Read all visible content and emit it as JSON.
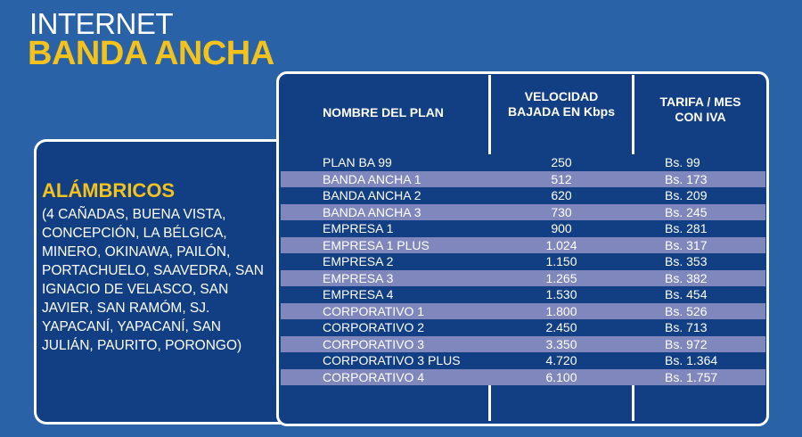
{
  "header": {
    "line1": "INTERNET",
    "line2": "BANDA ANCHA"
  },
  "left_panel": {
    "title": "ALÁMBRICOS",
    "description": "(4 CAÑADAS, BUENA VISTA, CONCEPCIÓN, LA BÉLGICA, MINERO, OKINAWA, PAILÓN, PORTACHUELO, SAAVEDRA, SAN IGNACIO DE VELASCO, SAN JAVIER, SAN RAMÓM, SJ. YAPACANÍ, YAPACANÍ, SAN JULIÁN, PAURITO, PORONGO)"
  },
  "table": {
    "headers": {
      "plan": "NOMBRE DEL PLAN",
      "speed": "VELOCIDAD BAJADA EN Kbps",
      "tariff": "TARIFA / MES CON IVA"
    },
    "rows": [
      {
        "plan": "PLAN BA 99",
        "speed": "250",
        "tariff": "Bs. 99"
      },
      {
        "plan": "BANDA ANCHA 1",
        "speed": "512",
        "tariff": "Bs. 173"
      },
      {
        "plan": "BANDA ANCHA 2",
        "speed": "620",
        "tariff": "Bs. 209"
      },
      {
        "plan": "BANDA ANCHA 3",
        "speed": "730",
        "tariff": "Bs. 245"
      },
      {
        "plan": "EMPRESA 1",
        "speed": "900",
        "tariff": "Bs. 281"
      },
      {
        "plan": "EMPRESA 1 PLUS",
        "speed": "1.024",
        "tariff": "Bs. 317"
      },
      {
        "plan": "EMPRESA 2",
        "speed": "1.150",
        "tariff": "Bs. 353"
      },
      {
        "plan": "EMPRESA 3",
        "speed": "1.265",
        "tariff": "Bs. 382"
      },
      {
        "plan": "EMPRESA 4",
        "speed": "1.530",
        "tariff": "Bs. 454"
      },
      {
        "plan": "CORPORATIVO 1",
        "speed": "1.800",
        "tariff": "Bs. 526"
      },
      {
        "plan": "CORPORATIVO 2",
        "speed": "2.450",
        "tariff": "Bs. 713"
      },
      {
        "plan": "CORPORATIVO 3",
        "speed": "3.350",
        "tariff": "Bs. 972"
      },
      {
        "plan": "CORPORATIVO 3 PLUS",
        "speed": "4.720",
        "tariff": "Bs. 1.364"
      },
      {
        "plan": "CORPORATIVO 4",
        "speed": "6.100",
        "tariff": "Bs. 1.757"
      }
    ]
  },
  "colors": {
    "background": "#2a62a8",
    "panel": "#123f84",
    "accent": "#f4c21c",
    "row_alt": "#7f87bd"
  }
}
